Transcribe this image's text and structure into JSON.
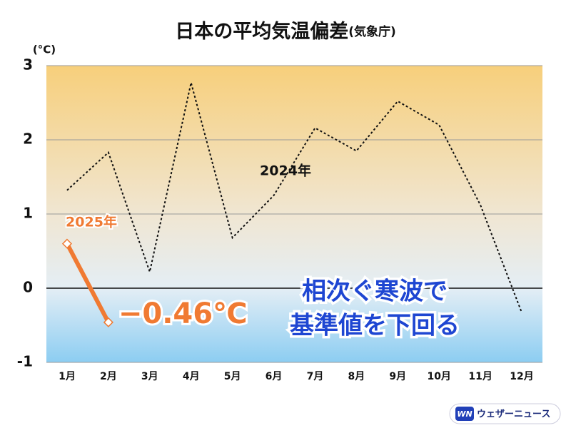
{
  "chart_data": {
    "type": "line",
    "title": "日本の平均気温偏差",
    "source": "(気象庁)",
    "y_unit": "(°C)",
    "categories": [
      "1月",
      "2月",
      "3月",
      "4月",
      "5月",
      "6月",
      "7月",
      "8月",
      "9月",
      "10月",
      "11月",
      "12月"
    ],
    "series": [
      {
        "name": "2024年",
        "color": "#111111",
        "style": "dashed",
        "values": [
          1.32,
          1.83,
          0.22,
          2.77,
          0.68,
          1.25,
          2.16,
          1.85,
          2.52,
          2.2,
          1.12,
          -0.33
        ]
      },
      {
        "name": "2025年",
        "color": "#f07a32",
        "style": "solid",
        "markers": "diamond",
        "values": [
          0.6,
          -0.46,
          null,
          null,
          null,
          null,
          null,
          null,
          null,
          null,
          null,
          null
        ],
        "value_labels": [
          null,
          "−0.46℃",
          null,
          null,
          null,
          null,
          null,
          null,
          null,
          null,
          null,
          null
        ]
      }
    ],
    "ylim": [
      -1,
      3
    ],
    "yticks": [
      -1,
      0,
      1,
      2,
      3
    ],
    "grid": true,
    "annotation": [
      "相次ぐ寒波で",
      "基準値を下回る"
    ]
  },
  "logo": {
    "mark": "WN",
    "text": "ウェザーニュース"
  }
}
